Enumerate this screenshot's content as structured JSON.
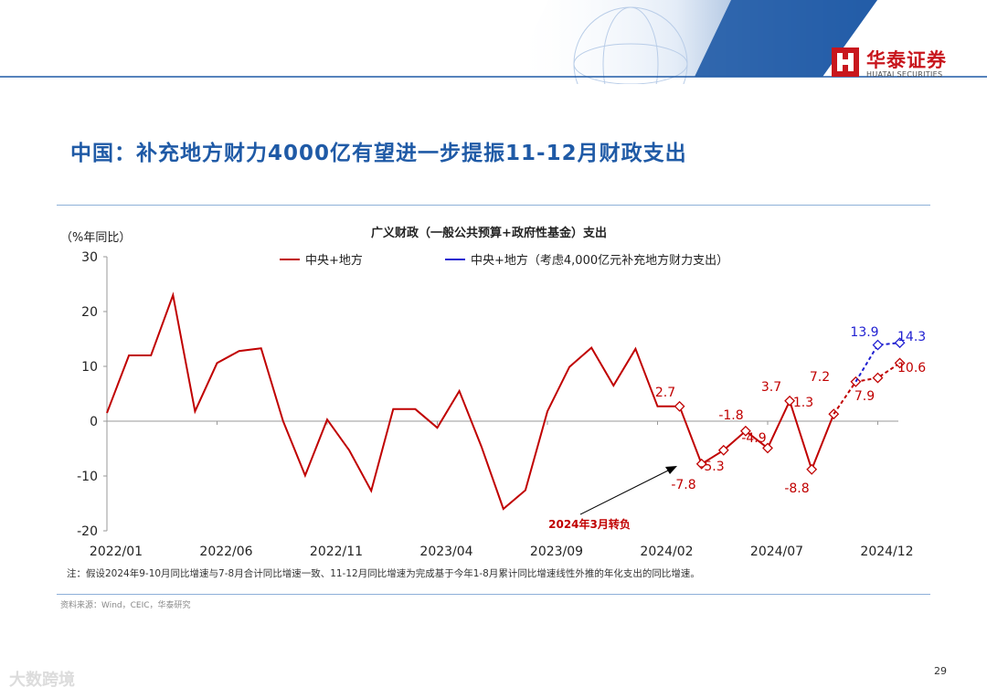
{
  "header": {
    "title": "中国：补充地方财力4000亿有望进一步提振11-12月财政支出",
    "brand_cn": "华泰证券",
    "brand_en": "HUATAI SECURITIES",
    "brand_color": "#c8161d",
    "title_color": "#1f5aa6"
  },
  "chart_data": {
    "type": "line",
    "title": "广义财政（一般公共预算+政府性基金）支出",
    "ylabel": "（%年同比）",
    "ylim": [
      -20,
      30
    ],
    "yticks": [
      30,
      20,
      10,
      0,
      -10,
      -20
    ],
    "xtick_labels": [
      "2022/01",
      "2022/06",
      "2022/11",
      "2023/04",
      "2023/09",
      "2024/02",
      "2024/07",
      "2024/12"
    ],
    "legend_position": "top",
    "series": [
      {
        "name": "中央+地方",
        "color": "#c00000",
        "values": [
          1.5,
          12,
          12,
          23,
          1.8,
          10.6,
          12.8,
          13.3,
          0,
          -9.9,
          0.3,
          -5.3,
          -12.7,
          2.2,
          2.2,
          -1.2,
          5.5,
          -4.6,
          -16,
          -12.6,
          1.8,
          9.9,
          13.4,
          6.5,
          13.2,
          2.7,
          2.7
        ]
      },
      {
        "name": "中央+地方",
        "color": "#c00000",
        "style": "diamond-markers",
        "start_index": 26,
        "values": [
          2.7,
          -7.8,
          -5.3,
          -1.8,
          -4.9,
          3.7,
          -8.8,
          1.3
        ]
      },
      {
        "name": "中央+地方",
        "color": "#c00000",
        "style": "dashed-diamond",
        "start_index": 33,
        "values": [
          1.3,
          7.2,
          7.9,
          10.6
        ]
      },
      {
        "name": "中央+地方（考虑4,000亿元补充地方财力支出）",
        "color": "#1f1fd1",
        "style": "dashed-diamond",
        "start_index": 34,
        "values": [
          7.2,
          13.9,
          14.3
        ]
      }
    ],
    "legend": [
      {
        "label": "中央+地方",
        "color": "#c00000"
      },
      {
        "label": "中央+地方（考虑4,000亿元补充地方财力支出）",
        "color": "#1f1fd1"
      }
    ],
    "data_labels": [
      {
        "text": "2.7",
        "color": "#c00000"
      },
      {
        "text": "-7.8",
        "color": "#c00000"
      },
      {
        "text": "-5.3",
        "color": "#c00000"
      },
      {
        "text": "-1.8",
        "color": "#c00000"
      },
      {
        "text": "-4.9",
        "color": "#c00000"
      },
      {
        "text": "3.7",
        "color": "#c00000"
      },
      {
        "text": "-8.8",
        "color": "#c00000"
      },
      {
        "text": "1.3",
        "color": "#c00000"
      },
      {
        "text": "7.2",
        "color": "#c00000"
      },
      {
        "text": "7.9",
        "color": "#c00000"
      },
      {
        "text": "10.6",
        "color": "#c00000"
      },
      {
        "text": "13.9",
        "color": "#1f1fd1"
      },
      {
        "text": "14.3",
        "color": "#1f1fd1"
      }
    ],
    "annotation": "2024年3月转负"
  },
  "footer": {
    "note": "注：假设2024年9-10月同比增速与7-8月合计同比增速一致、11-12月同比增速为完成基于今年1-8月累计同比增速线性外推的年化支出的同比增速。",
    "source": "资料来源：Wind，CEIC，华泰研究",
    "page": "29",
    "watermark": "大数跨境"
  }
}
